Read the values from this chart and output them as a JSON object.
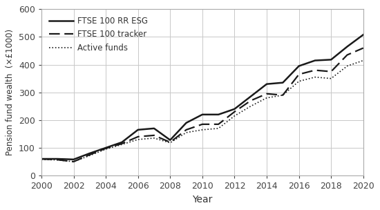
{
  "years": [
    2000,
    2001,
    2002,
    2003,
    2004,
    2005,
    2006,
    2007,
    2008,
    2009,
    2010,
    2011,
    2012,
    2013,
    2014,
    2015,
    2016,
    2017,
    2018,
    2019,
    2020
  ],
  "ftse_esg": [
    60,
    60,
    58,
    80,
    100,
    120,
    165,
    170,
    128,
    190,
    220,
    220,
    240,
    285,
    330,
    335,
    395,
    415,
    418,
    465,
    508
  ],
  "ftse_tracker": [
    60,
    57,
    50,
    75,
    98,
    115,
    140,
    145,
    120,
    165,
    185,
    185,
    230,
    270,
    295,
    290,
    365,
    380,
    375,
    435,
    460
  ],
  "active_funds": [
    58,
    56,
    50,
    72,
    95,
    112,
    130,
    135,
    118,
    155,
    165,
    170,
    215,
    250,
    280,
    290,
    340,
    355,
    350,
    395,
    415
  ],
  "xlabel": "Year",
  "ylabel": "Pension fund wealth  (×£1000)",
  "ylim": [
    0,
    600
  ],
  "xlim": [
    2000,
    2020
  ],
  "yticks": [
    0,
    100,
    200,
    300,
    400,
    500,
    600
  ],
  "xticks": [
    2000,
    2002,
    2004,
    2006,
    2008,
    2010,
    2012,
    2014,
    2016,
    2018,
    2020
  ],
  "legend_labels": [
    "FTSE 100 RR ESG",
    "FTSE 100 tracker",
    "Active funds"
  ],
  "line_color": "#1a1a1a",
  "grid_color": "#c8c8c8",
  "background_color": "#ffffff"
}
